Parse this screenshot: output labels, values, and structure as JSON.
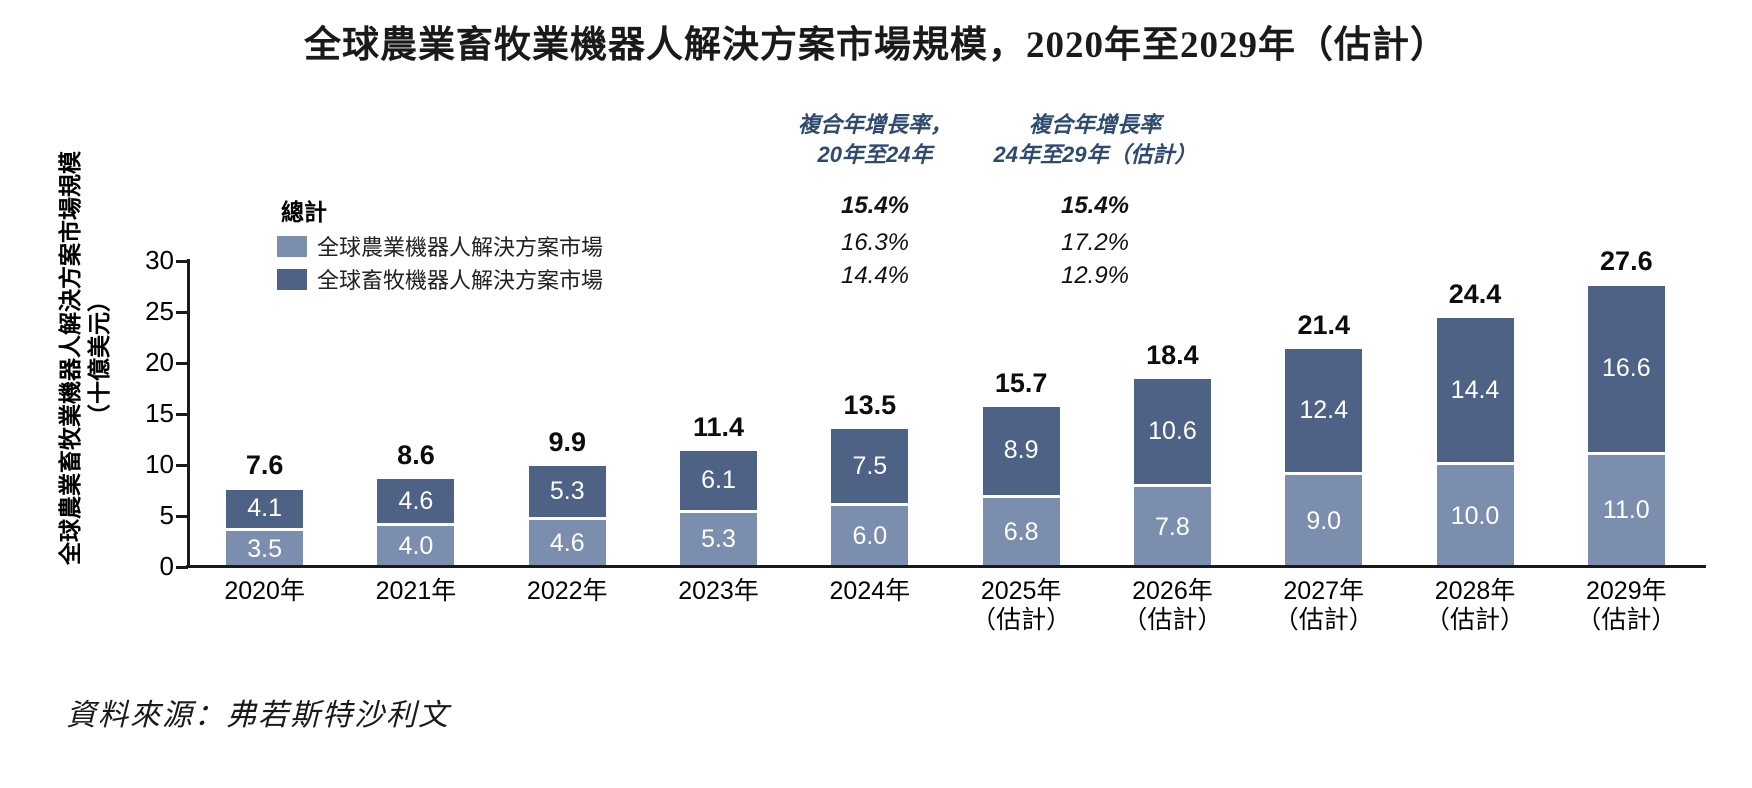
{
  "title": "全球農業畜牧業機器人解決方案市場規模，2020年至2029年（估計）",
  "y_axis": {
    "label_line1": "全球農業畜牧業機器人解決方案市場規模",
    "label_line2": "（十億美元）"
  },
  "legend": {
    "total_label": "總計",
    "items": [
      {
        "id": "agriculture",
        "label": "全球農業機器人解決方案市場",
        "color": "#4d6284"
      },
      {
        "id": "livestock",
        "label": "全球畜牧機器人解決方案市場",
        "color": "#7b8ead"
      }
    ]
  },
  "cagr": {
    "col1": {
      "header_line1": "複合年增長率，",
      "header_line2": "20年至24年",
      "total": "15.4%",
      "agriculture": "16.3%",
      "livestock": "14.4%"
    },
    "col2": {
      "header_line1": "複合年增長率",
      "header_line2": "24年至29年（估計）",
      "total": "15.4%",
      "agriculture": "17.2%",
      "livestock": "12.9%"
    }
  },
  "chart_data": {
    "type": "bar",
    "stacked": true,
    "title": "全球農業畜牧業機器人解決方案市場規模，2020年至2029年（估計）",
    "ylabel": "全球農業畜牧業機器人解決方案市場規模（十億美元）",
    "xlabel": "",
    "unit": "十億美元",
    "ylim": [
      0,
      30
    ],
    "y_ticks": [
      0,
      5,
      10,
      15,
      20,
      25,
      30
    ],
    "grid": false,
    "legend_position": "top-left",
    "categories": [
      {
        "label": "2020年",
        "sublabel": ""
      },
      {
        "label": "2021年",
        "sublabel": ""
      },
      {
        "label": "2022年",
        "sublabel": ""
      },
      {
        "label": "2023年",
        "sublabel": ""
      },
      {
        "label": "2024年",
        "sublabel": ""
      },
      {
        "label": "2025年",
        "sublabel": "（估計）"
      },
      {
        "label": "2026年",
        "sublabel": "（估計）"
      },
      {
        "label": "2027年",
        "sublabel": "（估計）"
      },
      {
        "label": "2028年",
        "sublabel": "（估計）"
      },
      {
        "label": "2029年",
        "sublabel": "（估計）"
      }
    ],
    "series": [
      {
        "name": "全球畜牧機器人解決方案市場",
        "stack_position": "bottom",
        "color": "#7b8ead",
        "values": [
          3.5,
          4.0,
          4.6,
          5.3,
          6.0,
          6.8,
          7.8,
          9.0,
          10.0,
          11.0
        ]
      },
      {
        "name": "全球農業機器人解決方案市場",
        "stack_position": "top",
        "color": "#4d6284",
        "values": [
          4.1,
          4.6,
          5.3,
          6.1,
          7.5,
          8.9,
          10.6,
          12.4,
          14.4,
          16.6
        ]
      }
    ],
    "totals": [
      7.6,
      8.6,
      9.9,
      11.4,
      13.5,
      15.7,
      18.4,
      21.4,
      24.4,
      27.6
    ]
  },
  "source": "資料來源：弗若斯特沙利文",
  "colors": {
    "bar_dark": "#4d6284",
    "bar_light": "#7b8ead",
    "cagr_header": "#2e4a6e",
    "axis": "#1a1a1a"
  }
}
